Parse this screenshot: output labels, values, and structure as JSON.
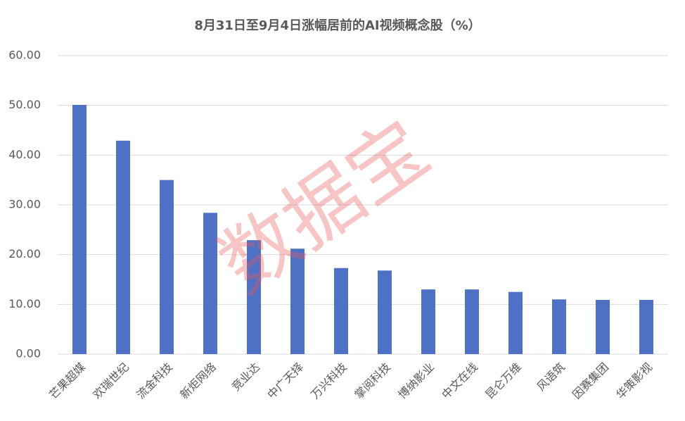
{
  "chart_data": {
    "type": "bar",
    "title": "8月31日至9月4日涨幅居前的AI视频概念股（%）",
    "watermark": "数据宝",
    "categories": [
      "芒果超媒",
      "欢瑞世纪",
      "流金科技",
      "新炬网络",
      "竞业达",
      "中广天择",
      "万兴科技",
      "掌阅科技",
      "博纳影业",
      "中文在线",
      "昆仑万维",
      "风语筑",
      "因赛集团",
      "华策影视"
    ],
    "values": [
      50.1,
      42.9,
      35.0,
      28.4,
      22.9,
      21.2,
      17.3,
      16.8,
      13.0,
      13.0,
      12.5,
      11.0,
      10.9,
      10.9
    ],
    "color": "#4f71c5",
    "ylim": [
      0,
      60
    ],
    "yticks": [
      {
        "value": 0,
        "label": "0.00"
      },
      {
        "value": 10,
        "label": "10.00"
      },
      {
        "value": 20,
        "label": "20.00"
      },
      {
        "value": 30,
        "label": "30.00"
      },
      {
        "value": 40,
        "label": "40.00"
      },
      {
        "value": 50,
        "label": "50.00"
      },
      {
        "value": 60,
        "label": "60.00"
      }
    ],
    "grid": true
  }
}
